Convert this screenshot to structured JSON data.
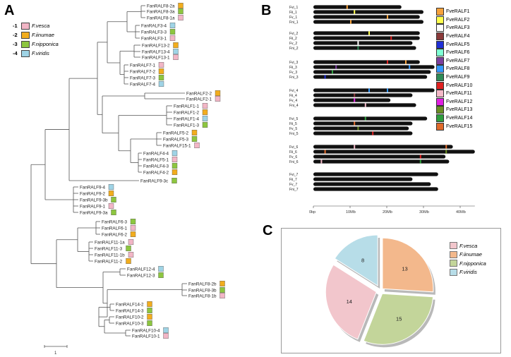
{
  "panels": {
    "a": "A",
    "b": "B",
    "c": "C"
  },
  "species": [
    {
      "num": "-1",
      "name": "F.vesca",
      "color": "#f2b6c6"
    },
    {
      "num": "-2",
      "name": "F.iinumae",
      "color": "#f2ad1e"
    },
    {
      "num": "-3",
      "name": "F.nipponica",
      "color": "#8dc63f"
    },
    {
      "num": "-4",
      "name": "F.viridis",
      "color": "#9fd4e6"
    }
  ],
  "tree_leaves": [
    {
      "name": "FanRALF8-2a",
      "sp": [
        2
      ]
    },
    {
      "name": "FanRALF8-3a",
      "sp": [
        3
      ]
    },
    {
      "name": "FanRALF8-1a",
      "sp": [
        1
      ]
    },
    {
      "name": "FanRALF3-4",
      "sp": [
        4
      ]
    },
    {
      "name": "FanRALF3-3",
      "sp": [
        3
      ]
    },
    {
      "name": "FanRALF3-1",
      "sp": [
        1
      ]
    },
    {
      "name": "FanRALF13-2",
      "sp": [
        2
      ]
    },
    {
      "name": "FanRALF13-4",
      "sp": [
        4
      ]
    },
    {
      "name": "FanRALF13-1",
      "sp": [
        1
      ]
    },
    {
      "name": "FanRALF7-1",
      "sp": [
        1
      ]
    },
    {
      "name": "FanRALF7-2",
      "sp": [
        2
      ]
    },
    {
      "name": "FanRALF7-3",
      "sp": [
        3
      ]
    },
    {
      "name": "FanRALF7-4",
      "sp": [
        4
      ]
    },
    {
      "name": "FanRALF2-2",
      "sp": [
        2
      ]
    },
    {
      "name": "FanRALF2-1",
      "sp": [
        1
      ]
    },
    {
      "name": "FanRALF1-1",
      "sp": [
        1
      ]
    },
    {
      "name": "FanRALF1-2",
      "sp": [
        2
      ]
    },
    {
      "name": "FanRALF1-4",
      "sp": [
        4
      ]
    },
    {
      "name": "FanRALF1-3",
      "sp": [
        3
      ]
    },
    {
      "name": "FanRALF5-2",
      "sp": [
        2
      ]
    },
    {
      "name": "FanRALF5-3",
      "sp": [
        3
      ]
    },
    {
      "name": "FanRALF15-1",
      "sp": [
        1
      ]
    },
    {
      "name": "FanRALF4-4",
      "sp": [
        4
      ]
    },
    {
      "name": "FanRALF5-1",
      "sp": [
        1
      ]
    },
    {
      "name": "FanRALF4-3",
      "sp": [
        3
      ]
    },
    {
      "name": "FanRALF4-2",
      "sp": [
        2
      ]
    },
    {
      "name": "FanRALF9-3c",
      "sp": [
        3
      ]
    },
    {
      "name": "FanRALF9-4",
      "sp": [
        4
      ]
    },
    {
      "name": "FanRALF9-2",
      "sp": [
        2
      ]
    },
    {
      "name": "FanRALF9-3b",
      "sp": [
        3
      ]
    },
    {
      "name": "FanRALF9-1",
      "sp": [
        1
      ]
    },
    {
      "name": "FanRALF9-3a",
      "sp": [
        3
      ]
    },
    {
      "name": "FanRALF6-3",
      "sp": [
        3
      ]
    },
    {
      "name": "FanRALF6-1",
      "sp": [
        1
      ]
    },
    {
      "name": "FanRALF6-2",
      "sp": [
        2
      ]
    },
    {
      "name": "FanRALF11-1a",
      "sp": [
        1
      ]
    },
    {
      "name": "FanRALF11-3",
      "sp": [
        3
      ]
    },
    {
      "name": "FanRALF11-1b",
      "sp": [
        1
      ]
    },
    {
      "name": "FanRALF11-2",
      "sp": [
        2
      ]
    },
    {
      "name": "FanRALF12-4",
      "sp": [
        4
      ]
    },
    {
      "name": "FanRALF12-3",
      "sp": [
        3
      ]
    },
    {
      "name": "FanRALF8-2b",
      "sp": [
        2
      ]
    },
    {
      "name": "FanRALF8-3b",
      "sp": [
        3
      ]
    },
    {
      "name": "FanRALF8-1b",
      "sp": [
        1
      ]
    },
    {
      "name": "FanRALF14-2",
      "sp": [
        2
      ]
    },
    {
      "name": "FanRALF14-3",
      "sp": [
        3
      ]
    },
    {
      "name": "FanRALF10-2",
      "sp": [
        2
      ]
    },
    {
      "name": "FanRALF10-3",
      "sp": [
        3
      ]
    },
    {
      "name": "FanRALF10-4",
      "sp": [
        4
      ]
    },
    {
      "name": "FanRALF10-1",
      "sp": [
        1
      ]
    }
  ],
  "scale_bar_label": "1",
  "chromosomes": [
    {
      "label": "Fvi_1",
      "len": 24
    },
    {
      "label": "Fii_1",
      "len": 30
    },
    {
      "label": "Fv_1",
      "len": 29
    },
    {
      "label": "Fni_1",
      "len": 30
    },
    {
      "label": "Fvi_2",
      "len": 29
    },
    {
      "label": "Fii_2",
      "len": 29
    },
    {
      "label": "Fv_2",
      "len": 27
    },
    {
      "label": "Fni_2",
      "len": 28
    },
    {
      "label": "Fvi_3",
      "len": 29
    },
    {
      "label": "Fii_3",
      "len": 33
    },
    {
      "label": "Fv_3",
      "len": 32
    },
    {
      "label": "Fni_3",
      "len": 31
    },
    {
      "label": "Fvi_4",
      "len": 33
    },
    {
      "label": "Fii_4",
      "len": 27
    },
    {
      "label": "Fv_4",
      "len": 21
    },
    {
      "label": "Fni_4",
      "len": 28
    },
    {
      "label": "Fvi_5",
      "len": 31
    },
    {
      "label": "Fii_5",
      "len": 27
    },
    {
      "label": "Fv_5",
      "len": 26
    },
    {
      "label": "Fni_5",
      "len": 27
    },
    {
      "label": "Fvi_6",
      "len": 38
    },
    {
      "label": "Fii_6",
      "len": 44
    },
    {
      "label": "Fv_6",
      "len": 36
    },
    {
      "label": "Fni_6",
      "len": 37
    },
    {
      "label": "Fvi_7",
      "len": 34
    },
    {
      "label": "Fii_7",
      "len": 27
    },
    {
      "label": "Fv_7",
      "len": 32
    },
    {
      "label": "Fni_7",
      "len": 34
    }
  ],
  "chrom_axis": {
    "ticks": [
      "0bp",
      "10Mb",
      "20Mb",
      "30Mb",
      "40Mb"
    ],
    "max": 40
  },
  "ralf_legend": [
    {
      "name": "FveRALF1",
      "color": "#f7a23b"
    },
    {
      "name": "FveRALF2",
      "color": "#ffff4d"
    },
    {
      "name": "FveRALF3",
      "color": "#ffffff"
    },
    {
      "name": "FveRALF4",
      "color": "#8b3a3a"
    },
    {
      "name": "FveRALF5",
      "color": "#1f2fd6"
    },
    {
      "name": "FveRALF6",
      "color": "#7fffd4"
    },
    {
      "name": "FveRALF7",
      "color": "#7b3f9e"
    },
    {
      "name": "FveRALF8",
      "color": "#3399ff"
    },
    {
      "name": "FveRALF9",
      "color": "#2e8b57"
    },
    {
      "name": "FveRALF10",
      "color": "#e02020"
    },
    {
      "name": "FveRALF11",
      "color": "#f4b9c8"
    },
    {
      "name": "FveRALF12",
      "color": "#e020e0"
    },
    {
      "name": "FveRALF13",
      "color": "#6b8e23"
    },
    {
      "name": "FveRALF14",
      "color": "#2e9e3e"
    },
    {
      "name": "FveRALF15",
      "color": "#e06a2a"
    }
  ],
  "chrom_marks": [
    {
      "c": 0,
      "pos": 9,
      "k": 0
    },
    {
      "c": 1,
      "pos": 11,
      "k": 1
    },
    {
      "c": 2,
      "pos": 20,
      "k": 0
    },
    {
      "c": 3,
      "pos": 10,
      "k": 0
    },
    {
      "c": 4,
      "pos": 15,
      "k": 1
    },
    {
      "c": 5,
      "pos": 21,
      "k": 9
    },
    {
      "c": 6,
      "pos": 12,
      "k": 2
    },
    {
      "c": 7,
      "pos": 12,
      "k": 8
    },
    {
      "c": 8,
      "pos": 20,
      "k": 9
    },
    {
      "c": 8,
      "pos": 25,
      "k": 0
    },
    {
      "c": 9,
      "pos": 6,
      "k": 6
    },
    {
      "c": 9,
      "pos": 26,
      "k": 7
    },
    {
      "c": 10,
      "pos": 5,
      "k": 13
    },
    {
      "c": 11,
      "pos": 3,
      "k": 4
    },
    {
      "c": 12,
      "pos": 15,
      "k": 7
    },
    {
      "c": 12,
      "pos": 20,
      "k": 7
    },
    {
      "c": 13,
      "pos": 11,
      "k": 3
    },
    {
      "c": 14,
      "pos": 11,
      "k": 11
    },
    {
      "c": 15,
      "pos": 14,
      "k": 10
    },
    {
      "c": 16,
      "pos": 14,
      "k": 13
    },
    {
      "c": 17,
      "pos": 11,
      "k": 14
    },
    {
      "c": 18,
      "pos": 12,
      "k": 12
    },
    {
      "c": 19,
      "pos": 16,
      "k": 9
    },
    {
      "c": 20,
      "pos": 11,
      "k": 10
    },
    {
      "c": 20,
      "pos": 36,
      "k": 14
    },
    {
      "c": 21,
      "pos": 3,
      "k": 14
    },
    {
      "c": 21,
      "pos": 36,
      "k": 12
    },
    {
      "c": 22,
      "pos": 29,
      "k": 9
    },
    {
      "c": 23,
      "pos": 2,
      "k": 10
    },
    {
      "c": 23,
      "pos": 29,
      "k": 13
    }
  ],
  "chart_data": {
    "type": "pie",
    "slices": [
      {
        "label": "F.vesca",
        "value": 14,
        "color": "#f2c6cc"
      },
      {
        "label": "F.iinumae",
        "value": 13,
        "color": "#f3b88c"
      },
      {
        "label": "F.nipponica",
        "value": 15,
        "color": "#c3d59a"
      },
      {
        "label": "F.viridis",
        "value": 8,
        "color": "#b7dde8"
      }
    ]
  }
}
